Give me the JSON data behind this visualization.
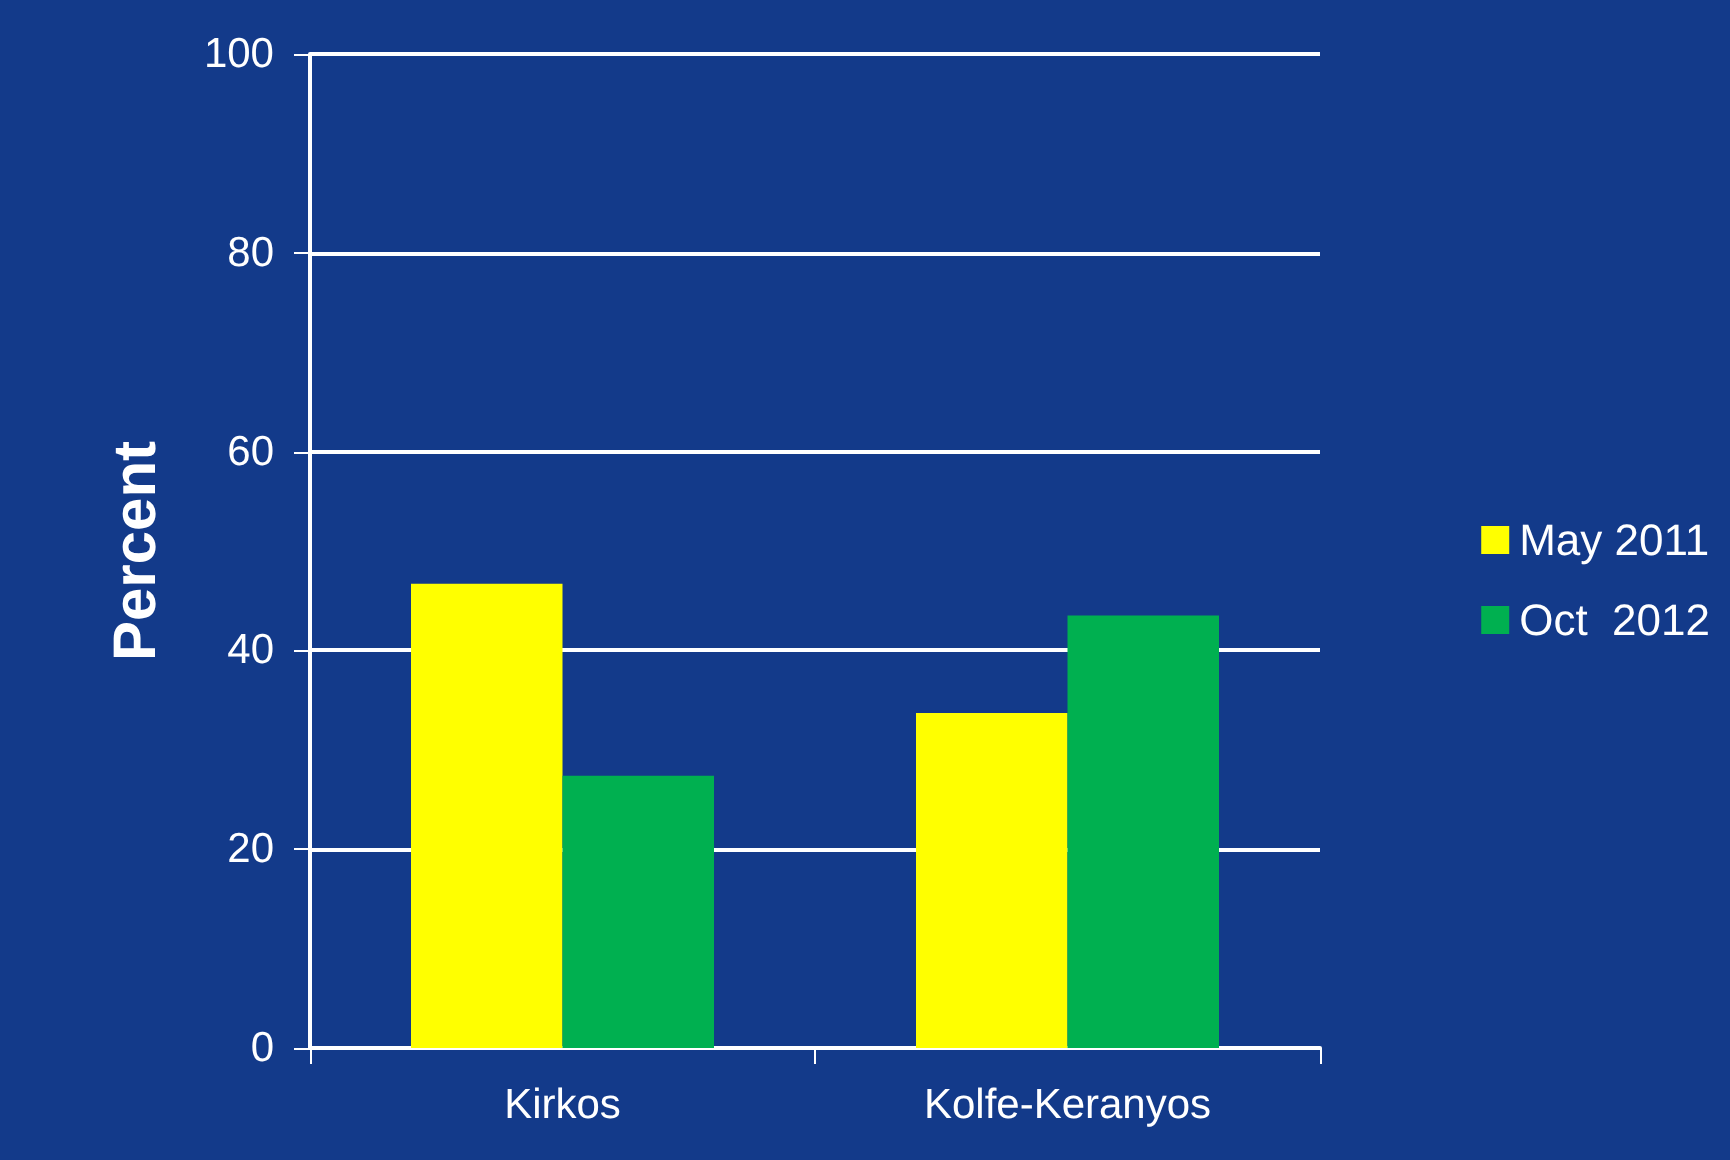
{
  "chart_data": {
    "type": "bar",
    "ylabel": "Percent",
    "categories": [
      "Kirkos",
      "Kolfe-Keranyos"
    ],
    "series": [
      {
        "name": "May 2011",
        "color": "#ffff00",
        "values": [
          46.7,
          33.7
        ]
      },
      {
        "name": "Oct  2012",
        "color": "#00b050",
        "values": [
          27.4,
          43.5
        ]
      }
    ],
    "ylim": [
      0,
      100
    ],
    "yticks": [
      0,
      20,
      40,
      60,
      80,
      100
    ],
    "grid": "y",
    "legend": "right"
  }
}
